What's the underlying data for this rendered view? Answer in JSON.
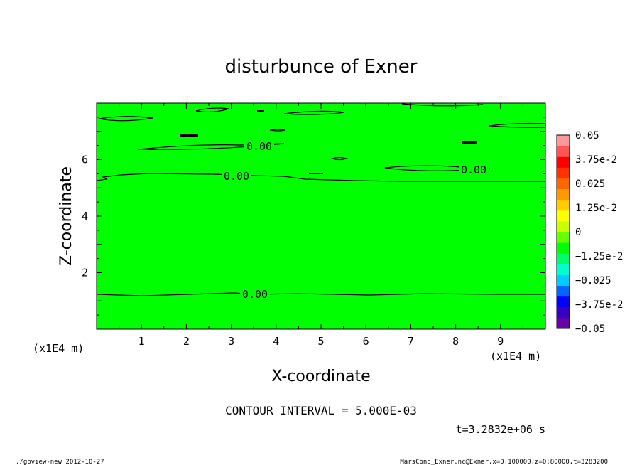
{
  "chart_data": {
    "type": "contour",
    "title": "disturbunce of Exner",
    "xlabel": "X-coordinate",
    "ylabel": "Z-coordinate",
    "x_unit": "(x1E4 m)",
    "y_unit": "(x1E4 m)",
    "x_ticks": [
      "1",
      "2",
      "3",
      "4",
      "5",
      "6",
      "7",
      "8",
      "9"
    ],
    "y_ticks": [
      "2",
      "4",
      "6"
    ],
    "xlim": [
      0,
      10
    ],
    "ylim": [
      0,
      8
    ],
    "fill_color": "#00ff00",
    "contour_labels": [
      "0.00",
      "0.00",
      "0.00",
      "0.00"
    ],
    "contour_interval_text": "CONTOUR INTERVAL = 5.000E-03",
    "time_text": "t=3.2832e+06 s",
    "colorbar": {
      "labels": [
        "0.05",
        "3.75e-2",
        "0.025",
        "1.25e-2",
        "0",
        "−1.25e-2",
        "−0.025",
        "−3.75e-2",
        "−0.05"
      ],
      "colors": [
        "#6a00a8",
        "#3a00c0",
        "#0000ff",
        "#0066ff",
        "#00ccff",
        "#00ffcc",
        "#00ff66",
        "#00ff00",
        "#66ff00",
        "#ccff00",
        "#ffff00",
        "#ffcc00",
        "#ff9900",
        "#ff6600",
        "#ff3300",
        "#ff0000",
        "#ff5555",
        "#ff9999"
      ]
    },
    "footer_left": "./gpview-new   2012-10-27",
    "footer_right": "MarsCond_Exner.nc@Exner,x=0:100000,z=0:80000,t=3283200"
  }
}
